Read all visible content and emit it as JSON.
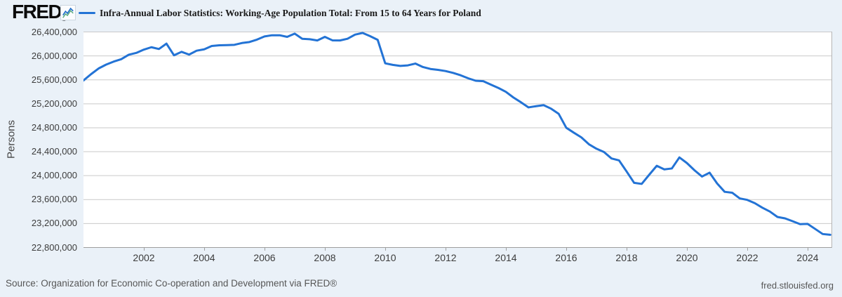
{
  "header": {
    "logo_text": "FRED",
    "registered_mark": "®",
    "series_title": "Infra-Annual Labor Statistics: Working-Age Population Total: From 15 to 64 Years for Poland"
  },
  "y_axis": {
    "label": "Persons",
    "ticks": [
      "26,400,000",
      "26,000,000",
      "25,600,000",
      "25,200,000",
      "24,800,000",
      "24,400,000",
      "24,000,000",
      "23,600,000",
      "23,200,000",
      "22,800,000"
    ]
  },
  "x_axis": {
    "ticks": [
      "2002",
      "2004",
      "2006",
      "2008",
      "2010",
      "2012",
      "2014",
      "2016",
      "2018",
      "2020",
      "2022",
      "2024"
    ]
  },
  "footer": {
    "source": "Source: Organization for Economic Co-operation and Development via FRED®",
    "site": "fred.stlouisfed.org"
  },
  "colors": {
    "background": "#eaf1f8",
    "plot_background": "#ffffff",
    "gridline": "#c9c9c9",
    "axis_line": "#9e9e9e",
    "tick_text": "#3c3c3c",
    "line": "#2373d5",
    "logo_icon_blue": "#1e6cc7",
    "logo_icon_green": "#56a97c"
  },
  "chart_data": {
    "type": "line",
    "title": "Infra-Annual Labor Statistics: Working-Age Population Total: From 15 to 64 Years for Poland",
    "ylabel": "Persons",
    "units": "Persons",
    "frequency": "Quarterly",
    "x_start_year": 2000.0,
    "x_step_years": 0.25,
    "xlim": [
      2000.0,
      2024.79
    ],
    "ylim": [
      22800000,
      26400000
    ],
    "y_tick_step": 400000,
    "x_tick_years": [
      2002,
      2004,
      2006,
      2008,
      2010,
      2012,
      2014,
      2016,
      2018,
      2020,
      2022,
      2024
    ],
    "grid": "horizontal",
    "legend_position": "top-left",
    "series": [
      {
        "name": "Infra-Annual Labor Statistics: Working-Age Population Total: From 15 to 64 Years for Poland",
        "color": "#2373d5",
        "values": [
          25590000,
          25695000,
          25790000,
          25855000,
          25905000,
          25945000,
          26020000,
          26050000,
          26105000,
          26145000,
          26115000,
          26205000,
          26010000,
          26068000,
          26022000,
          26087000,
          26110000,
          26165000,
          26177000,
          26180000,
          26185000,
          26215000,
          26232000,
          26272000,
          26325000,
          26345000,
          26345000,
          26318000,
          26372000,
          26286000,
          26278000,
          26258000,
          26318000,
          26260000,
          26258000,
          26286000,
          26355000,
          26384000,
          26330000,
          26268000,
          25876000,
          25850000,
          25833000,
          25842000,
          25872000,
          25814000,
          25782000,
          25767000,
          25747000,
          25716000,
          25676000,
          25626000,
          25585000,
          25578000,
          25520000,
          25465000,
          25400000,
          25305000,
          25225000,
          25140000,
          25160000,
          25178000,
          25118000,
          25032000,
          24800000,
          24718000,
          24640000,
          24525000,
          24450000,
          24395000,
          24287000,
          24255000,
          24070000,
          23880000,
          23862000,
          24015000,
          24165000,
          24105000,
          24120000,
          24305000,
          24210000,
          24090000,
          23985000,
          24050000,
          23870000,
          23730000,
          23715000,
          23620000,
          23595000,
          23540000,
          23465000,
          23400000,
          23310000,
          23287000,
          23240000,
          23190000,
          23195000,
          23110000,
          23025000,
          23012000
        ]
      }
    ]
  }
}
